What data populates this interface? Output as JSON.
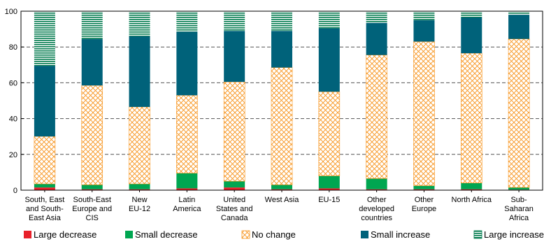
{
  "chart_data": {
    "type": "bar",
    "stacked": true,
    "title": "",
    "xlabel": "",
    "ylabel": "",
    "ylim": [
      0,
      100
    ],
    "yticks": [
      0,
      20,
      40,
      60,
      80,
      100
    ],
    "grid": "dashed horizontal",
    "legend_position": "bottom",
    "categories": [
      [
        "South, East",
        "and South-",
        "East Asia"
      ],
      [
        "South-East",
        "Europe and",
        "CIS"
      ],
      [
        "New",
        "EU-12"
      ],
      [
        "Latin",
        "America"
      ],
      [
        "United",
        "States and",
        "Canada"
      ],
      [
        "West Asia"
      ],
      [
        "EU-15"
      ],
      [
        "Other",
        "developed",
        "countries"
      ],
      [
        "Other",
        "Europe"
      ],
      [
        "North Africa"
      ],
      [
        "Sub-",
        "Saharan",
        "Africa"
      ]
    ],
    "series": [
      {
        "name": "Large decrease",
        "color": "#e8202a",
        "pattern": "solid",
        "values": [
          1.5,
          0.5,
          0.5,
          1,
          1.5,
          0.5,
          1,
          0.5,
          0.5,
          0.5,
          0.3
        ]
      },
      {
        "name": "Small decrease",
        "color": "#00a651",
        "pattern": "solid",
        "values": [
          2,
          2.5,
          3,
          8.5,
          3.5,
          2.5,
          7,
          6,
          2,
          3.5,
          1.2
        ]
      },
      {
        "name": "No change",
        "color": "#f7941d",
        "pattern": "crosshatch",
        "values": [
          26.5,
          55.5,
          43,
          43.5,
          55.5,
          65.5,
          47,
          69,
          80.5,
          72.5,
          83
        ]
      },
      {
        "name": "Small increase",
        "color": "#00627a",
        "pattern": "solid",
        "values": [
          39.5,
          26,
          39.5,
          35.5,
          28.5,
          20.5,
          35.5,
          18,
          12,
          20,
          13.5
        ]
      },
      {
        "name": "Large increase",
        "color": "#007a4d",
        "pattern": "horizontal-stripes",
        "values": [
          30.5,
          15.5,
          14,
          11.5,
          11,
          11,
          9.5,
          6.5,
          5,
          3.5,
          2
        ]
      }
    ]
  }
}
